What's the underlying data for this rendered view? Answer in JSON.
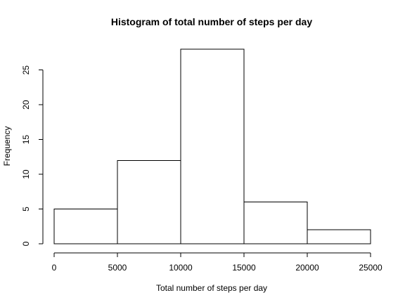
{
  "chart_data": {
    "type": "histogram",
    "title": "Histogram of total number of steps per day",
    "xlabel": "Total number of steps per day",
    "ylabel": "Frequency",
    "bins": [
      {
        "from": 0,
        "to": 5000,
        "count": 5
      },
      {
        "from": 5000,
        "to": 10000,
        "count": 12
      },
      {
        "from": 10000,
        "to": 15000,
        "count": 28
      },
      {
        "from": 15000,
        "to": 20000,
        "count": 6
      },
      {
        "from": 20000,
        "to": 25000,
        "count": 2
      }
    ],
    "xlim": [
      0,
      25000
    ],
    "ylim": [
      0,
      28
    ],
    "x_ticks": [
      0,
      5000,
      10000,
      15000,
      20000,
      25000
    ],
    "y_ticks": [
      0,
      5,
      10,
      15,
      20,
      25
    ],
    "grid": false,
    "bar_fill": "#ffffff",
    "bar_stroke": "#000000"
  }
}
